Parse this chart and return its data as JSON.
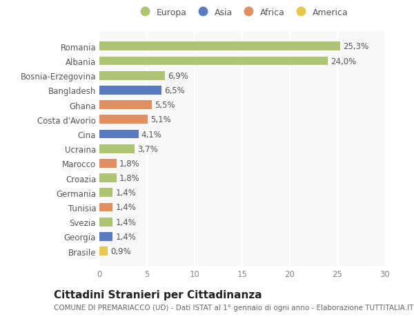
{
  "categories": [
    "Brasile",
    "Georgia",
    "Svezia",
    "Tunisia",
    "Germania",
    "Croazia",
    "Marocco",
    "Ucraina",
    "Cina",
    "Costa d'Avorio",
    "Ghana",
    "Bangladesh",
    "Bosnia-Erzegovina",
    "Albania",
    "Romania"
  ],
  "values": [
    0.9,
    1.4,
    1.4,
    1.4,
    1.4,
    1.8,
    1.8,
    3.7,
    4.1,
    5.1,
    5.5,
    6.5,
    6.9,
    24.0,
    25.3
  ],
  "labels": [
    "0,9%",
    "1,4%",
    "1,4%",
    "1,4%",
    "1,4%",
    "1,8%",
    "1,8%",
    "3,7%",
    "4,1%",
    "5,1%",
    "5,5%",
    "6,5%",
    "6,9%",
    "24,0%",
    "25,3%"
  ],
  "colors": [
    "#e8c84a",
    "#5b7abf",
    "#adc472",
    "#e09060",
    "#adc472",
    "#adc472",
    "#e09060",
    "#adc472",
    "#5b7abf",
    "#e09060",
    "#e09060",
    "#5b7abf",
    "#adc472",
    "#adc472",
    "#adc472"
  ],
  "legend": [
    {
      "label": "Europa",
      "color": "#adc472"
    },
    {
      "label": "Asia",
      "color": "#5b7abf"
    },
    {
      "label": "Africa",
      "color": "#e09060"
    },
    {
      "label": "America",
      "color": "#e8c84a"
    }
  ],
  "xlim": [
    0,
    30
  ],
  "xticks": [
    0,
    5,
    10,
    15,
    20,
    25,
    30
  ],
  "title": "Cittadini Stranieri per Cittadinanza",
  "subtitle": "COMUNE DI PREMARIACCO (UD) - Dati ISTAT al 1° gennaio di ogni anno - Elaborazione TUTTITALIA.IT",
  "bg_color": "#ffffff",
  "plot_bg_color": "#f8f8f8",
  "bar_height": 0.6,
  "grid_color": "#ffffff",
  "label_fontsize": 8.5,
  "tick_fontsize": 8.5,
  "title_fontsize": 11,
  "subtitle_fontsize": 7.5
}
